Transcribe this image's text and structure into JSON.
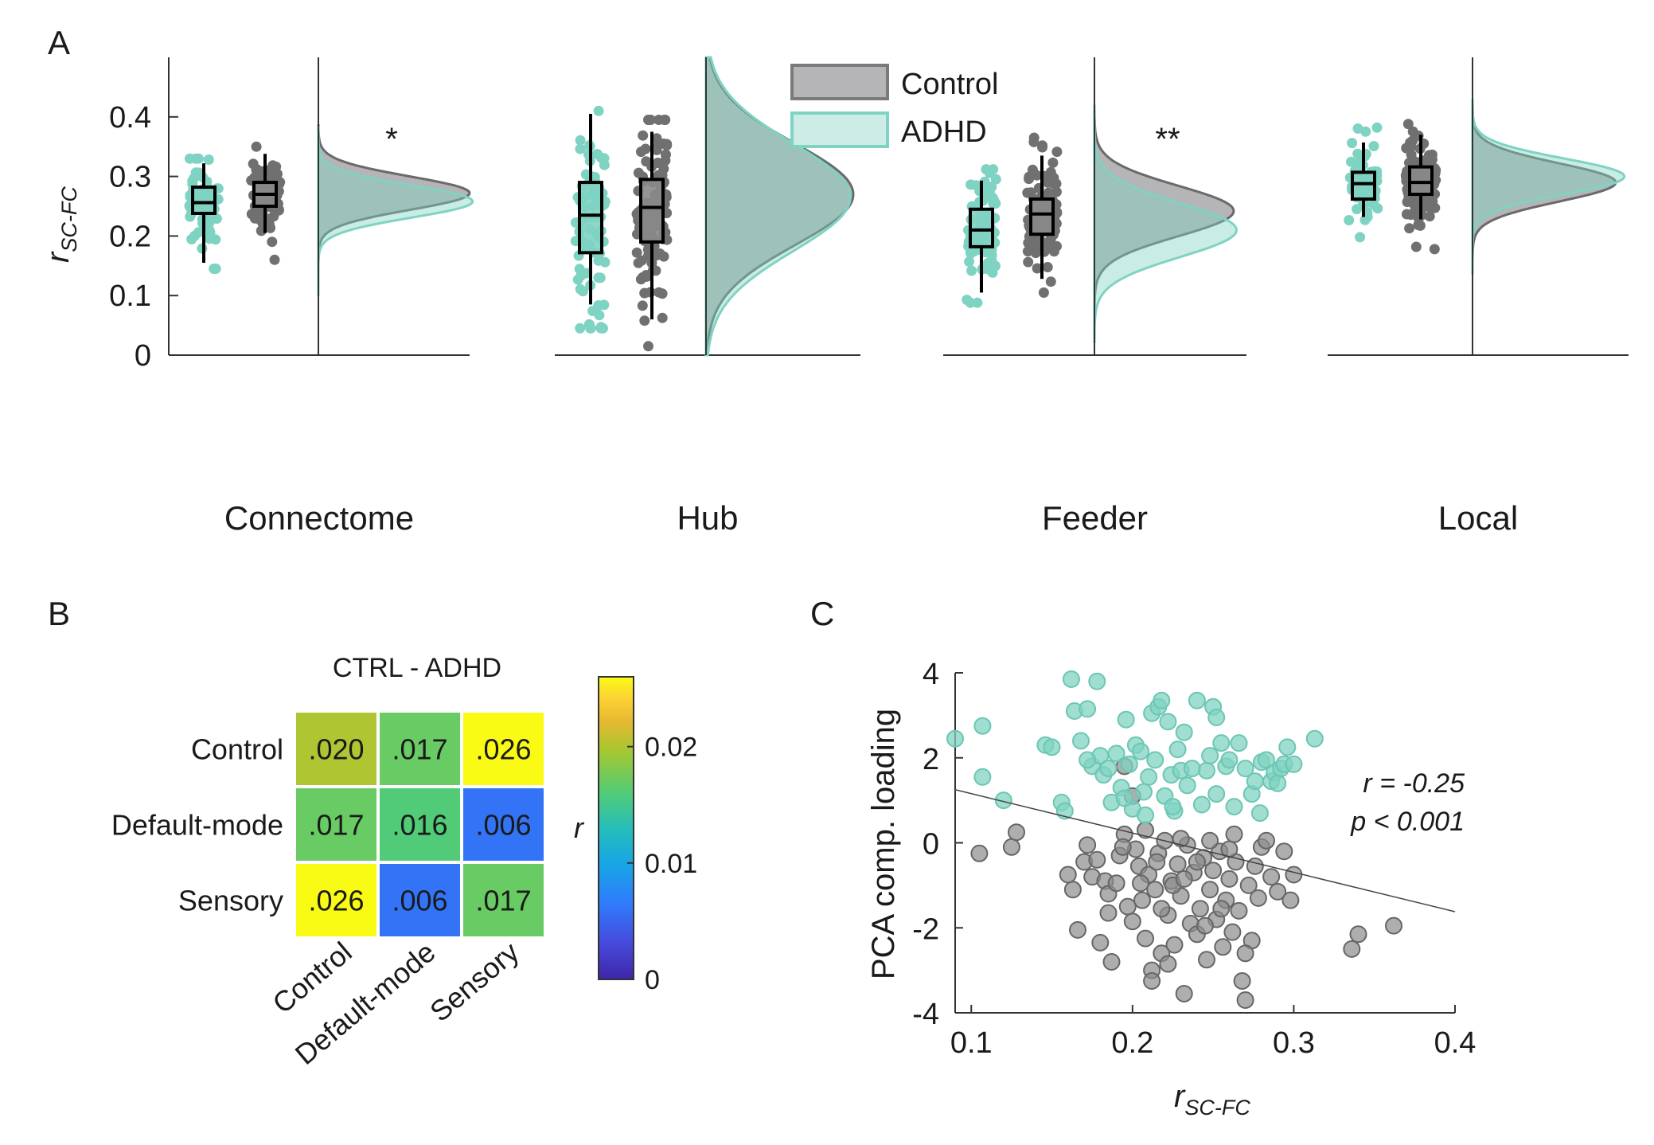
{
  "panel_letters": {
    "a": "A",
    "b": "B",
    "c": "C"
  },
  "colors": {
    "control": "#8c8c8c",
    "control_edge": "#6a6a6a",
    "control_fill": "#b5b4b6",
    "adhd": "#7fd3c2",
    "adhd_fill": "#cdece5",
    "overlap_fill": "#93b5ad"
  },
  "chart_data": [
    {
      "type": "raincloud",
      "ylabel_main": "r",
      "ylabel_sub": "SC-FC",
      "ylim": [
        0,
        0.5
      ],
      "yticks": [
        {
          "v": 0,
          "label": "0"
        },
        {
          "v": 0.1,
          "label": "0.1"
        },
        {
          "v": 0.2,
          "label": "0.2"
        },
        {
          "v": 0.3,
          "label": "0.3"
        },
        {
          "v": 0.4,
          "label": "0.4"
        }
      ],
      "legend": {
        "placement": "top-center",
        "control": "Control",
        "adhd": "ADHD"
      },
      "groups": [
        {
          "name": "Connectome",
          "sig": "*",
          "adhd_box": {
            "min": 0.155,
            "q1": 0.238,
            "median": 0.256,
            "q3": 0.282,
            "max": 0.322
          },
          "control_box": {
            "min": 0.205,
            "q1": 0.25,
            "median": 0.27,
            "q3": 0.29,
            "max": 0.338
          },
          "adhd_points": {
            "n": 70,
            "min": 0.145,
            "max": 0.33
          },
          "control_points": {
            "n": 95,
            "min": 0.16,
            "max": 0.35
          },
          "control_density": {
            "mean": 0.272,
            "sd": 0.028
          },
          "adhd_density": {
            "mean": 0.258,
            "sd": 0.027
          },
          "density_range": [
            0.1,
            0.385
          ]
        },
        {
          "name": "Hub",
          "sig": "",
          "adhd_box": {
            "min": 0.085,
            "q1": 0.172,
            "median": 0.235,
            "q3": 0.29,
            "max": 0.405
          },
          "control_box": {
            "min": 0.06,
            "q1": 0.19,
            "median": 0.248,
            "q3": 0.295,
            "max": 0.375
          },
          "adhd_points": {
            "n": 75,
            "min": 0.045,
            "max": 0.41
          },
          "control_points": {
            "n": 110,
            "min": 0.015,
            "max": 0.395
          },
          "control_density": {
            "mean": 0.27,
            "sd": 0.085
          },
          "adhd_density": {
            "mean": 0.265,
            "sd": 0.09
          },
          "density_range": [
            0,
            0.5
          ]
        },
        {
          "name": "Feeder",
          "sig": "**",
          "adhd_box": {
            "min": 0.105,
            "q1": 0.182,
            "median": 0.21,
            "q3": 0.245,
            "max": 0.293
          },
          "control_box": {
            "min": 0.128,
            "q1": 0.203,
            "median": 0.237,
            "q3": 0.262,
            "max": 0.335
          },
          "adhd_points": {
            "n": 70,
            "min": 0.088,
            "max": 0.312
          },
          "control_points": {
            "n": 120,
            "min": 0.105,
            "max": 0.365
          },
          "control_density": {
            "mean": 0.242,
            "sd": 0.042
          },
          "adhd_density": {
            "mean": 0.21,
            "sd": 0.045
          },
          "density_range": [
            0.02,
            0.42
          ]
        },
        {
          "name": "Local",
          "sig": "",
          "adhd_box": {
            "min": 0.232,
            "q1": 0.262,
            "median": 0.288,
            "q3": 0.307,
            "max": 0.357
          },
          "control_box": {
            "min": 0.228,
            "q1": 0.27,
            "median": 0.29,
            "q3": 0.316,
            "max": 0.37
          },
          "adhd_points": {
            "n": 70,
            "min": 0.198,
            "max": 0.382
          },
          "control_points": {
            "n": 120,
            "min": 0.178,
            "max": 0.388
          },
          "control_density": {
            "mean": 0.29,
            "sd": 0.032
          },
          "adhd_density": {
            "mean": 0.3,
            "sd": 0.03
          },
          "density_range": [
            0.135,
            0.43
          ]
        }
      ]
    },
    {
      "type": "heatmap",
      "title": "CTRL - ADHD",
      "rows": [
        "Control",
        "Default-mode",
        "Sensory"
      ],
      "cols": [
        "Control",
        "Default-mode",
        "Sensory"
      ],
      "values": [
        [
          0.02,
          0.017,
          0.026
        ],
        [
          0.017,
          0.016,
          0.006
        ],
        [
          0.026,
          0.006,
          0.017
        ]
      ],
      "labels": [
        [
          ".020",
          ".017",
          ".026"
        ],
        [
          ".017",
          ".016",
          ".006"
        ],
        [
          ".026",
          ".006",
          ".017"
        ]
      ],
      "colorbar": {
        "label": "r",
        "range": [
          0,
          0.026
        ],
        "ticks": [
          {
            "v": 0,
            "label": "0"
          },
          {
            "v": 0.01,
            "label": "0.01"
          },
          {
            "v": 0.02,
            "label": "0.02"
          }
        ]
      }
    },
    {
      "type": "scatter",
      "xlabel_main": "r",
      "xlabel_sub": "SC-FC",
      "ylabel": "PCA comp. loading",
      "xlim": [
        0.09,
        0.4
      ],
      "ylim": [
        -4,
        4
      ],
      "xticks": [
        {
          "v": 0.1,
          "label": "0.1"
        },
        {
          "v": 0.2,
          "label": "0.2"
        },
        {
          "v": 0.3,
          "label": "0.3"
        },
        {
          "v": 0.4,
          "label": "0.4"
        }
      ],
      "yticks": [
        {
          "v": -4,
          "label": "-4"
        },
        {
          "v": -2,
          "label": "-2"
        },
        {
          "v": 0,
          "label": "0"
        },
        {
          "v": 2,
          "label": "2"
        },
        {
          "v": 4,
          "label": "4"
        }
      ],
      "annotation_r": "r = -0.25",
      "annotation_p": "p < 0.001",
      "fit_line": {
        "x": [
          0.09,
          0.4
        ],
        "y": [
          1.25,
          -1.62
        ]
      },
      "adhd_points": [
        [
          0.09,
          2.45
        ],
        [
          0.107,
          2.75
        ],
        [
          0.107,
          1.55
        ],
        [
          0.12,
          1.0
        ],
        [
          0.146,
          2.3
        ],
        [
          0.15,
          2.25
        ],
        [
          0.156,
          0.95
        ],
        [
          0.158,
          0.75
        ],
        [
          0.162,
          3.85
        ],
        [
          0.164,
          3.1
        ],
        [
          0.168,
          2.4
        ],
        [
          0.172,
          3.15
        ],
        [
          0.175,
          1.8
        ],
        [
          0.178,
          3.8
        ],
        [
          0.18,
          2.05
        ],
        [
          0.182,
          1.6
        ],
        [
          0.185,
          1.75
        ],
        [
          0.187,
          0.95
        ],
        [
          0.19,
          2.1
        ],
        [
          0.193,
          1.3
        ],
        [
          0.196,
          2.9
        ],
        [
          0.198,
          1.85
        ],
        [
          0.2,
          0.8
        ],
        [
          0.202,
          2.3
        ],
        [
          0.205,
          2.15
        ],
        [
          0.207,
          1.2
        ],
        [
          0.21,
          1.55
        ],
        [
          0.212,
          3.05
        ],
        [
          0.214,
          1.95
        ],
        [
          0.216,
          3.2
        ],
        [
          0.218,
          3.35
        ],
        [
          0.22,
          1.1
        ],
        [
          0.222,
          2.85
        ],
        [
          0.224,
          1.6
        ],
        [
          0.226,
          0.75
        ],
        [
          0.228,
          2.2
        ],
        [
          0.23,
          1.7
        ],
        [
          0.232,
          2.6
        ],
        [
          0.234,
          1.35
        ],
        [
          0.237,
          1.75
        ],
        [
          0.24,
          3.35
        ],
        [
          0.243,
          0.9
        ],
        [
          0.246,
          1.7
        ],
        [
          0.248,
          2.05
        ],
        [
          0.25,
          3.2
        ],
        [
          0.252,
          1.15
        ],
        [
          0.255,
          2.35
        ],
        [
          0.258,
          1.8
        ],
        [
          0.26,
          1.95
        ],
        [
          0.263,
          0.85
        ],
        [
          0.266,
          2.35
        ],
        [
          0.27,
          1.75
        ],
        [
          0.274,
          1.15
        ],
        [
          0.276,
          1.45
        ],
        [
          0.279,
          0.7
        ],
        [
          0.28,
          1.9
        ],
        [
          0.283,
          1.95
        ],
        [
          0.286,
          1.45
        ],
        [
          0.288,
          1.65
        ],
        [
          0.29,
          1.4
        ],
        [
          0.292,
          1.75
        ],
        [
          0.294,
          1.85
        ],
        [
          0.296,
          2.25
        ],
        [
          0.3,
          1.85
        ],
        [
          0.313,
          2.45
        ],
        [
          0.225,
          0.85
        ],
        [
          0.195,
          1.05
        ],
        [
          0.208,
          0.65
        ],
        [
          0.172,
          1.95
        ],
        [
          0.252,
          2.95
        ]
      ],
      "control_points": [
        [
          0.105,
          -0.25
        ],
        [
          0.125,
          -0.1
        ],
        [
          0.128,
          0.25
        ],
        [
          0.16,
          -0.75
        ],
        [
          0.163,
          -1.1
        ],
        [
          0.166,
          -2.05
        ],
        [
          0.17,
          -0.45
        ],
        [
          0.172,
          -0.05
        ],
        [
          0.175,
          -0.8
        ],
        [
          0.18,
          -2.35
        ],
        [
          0.183,
          -0.9
        ],
        [
          0.185,
          -1.2
        ],
        [
          0.187,
          -2.8
        ],
        [
          0.19,
          -0.95
        ],
        [
          0.192,
          -0.3
        ],
        [
          0.195,
          0.2
        ],
        [
          0.197,
          -1.5
        ],
        [
          0.2,
          -1.85
        ],
        [
          0.202,
          -0.15
        ],
        [
          0.204,
          -0.55
        ],
        [
          0.206,
          -1.35
        ],
        [
          0.208,
          -2.25
        ],
        [
          0.21,
          -0.75
        ],
        [
          0.212,
          -3.0
        ],
        [
          0.214,
          -1.1
        ],
        [
          0.216,
          -0.25
        ],
        [
          0.218,
          -2.6
        ],
        [
          0.22,
          0.05
        ],
        [
          0.222,
          -1.7
        ],
        [
          0.224,
          -0.9
        ],
        [
          0.226,
          -2.4
        ],
        [
          0.228,
          -0.5
        ],
        [
          0.23,
          -1.25
        ],
        [
          0.232,
          -3.55
        ],
        [
          0.234,
          -0.05
        ],
        [
          0.236,
          -1.9
        ],
        [
          0.238,
          -0.7
        ],
        [
          0.24,
          -2.15
        ],
        [
          0.242,
          -1.55
        ],
        [
          0.244,
          -0.35
        ],
        [
          0.246,
          -2.75
        ],
        [
          0.248,
          -1.1
        ],
        [
          0.25,
          -0.65
        ],
        [
          0.252,
          -1.8
        ],
        [
          0.254,
          -0.2
        ],
        [
          0.256,
          -2.45
        ],
        [
          0.258,
          -1.35
        ],
        [
          0.26,
          -0.85
        ],
        [
          0.262,
          -2.1
        ],
        [
          0.264,
          -0.45
        ],
        [
          0.266,
          -1.6
        ],
        [
          0.268,
          -3.25
        ],
        [
          0.27,
          -3.7
        ],
        [
          0.272,
          -1.0
        ],
        [
          0.274,
          -2.3
        ],
        [
          0.276,
          -0.55
        ],
        [
          0.278,
          -1.3
        ],
        [
          0.28,
          -0.1
        ],
        [
          0.283,
          0.05
        ],
        [
          0.286,
          -0.8
        ],
        [
          0.29,
          -1.15
        ],
        [
          0.294,
          -0.2
        ],
        [
          0.298,
          -1.35
        ],
        [
          0.3,
          -0.75
        ],
        [
          0.336,
          -2.5
        ],
        [
          0.34,
          -2.15
        ],
        [
          0.362,
          -1.95
        ],
        [
          0.2,
          1.1
        ],
        [
          0.195,
          1.8
        ],
        [
          0.215,
          -0.45
        ],
        [
          0.225,
          -1.0
        ],
        [
          0.205,
          -0.95
        ],
        [
          0.212,
          -3.25
        ],
        [
          0.23,
          0.1
        ],
        [
          0.245,
          -1.95
        ],
        [
          0.263,
          0.2
        ],
        [
          0.27,
          -2.6
        ],
        [
          0.185,
          -1.65
        ],
        [
          0.178,
          -0.4
        ],
        [
          0.24,
          -0.45
        ],
        [
          0.255,
          -1.55
        ],
        [
          0.248,
          0.05
        ],
        [
          0.26,
          -0.15
        ],
        [
          0.222,
          -2.85
        ],
        [
          0.218,
          -1.55
        ],
        [
          0.232,
          -0.85
        ],
        [
          0.194,
          -0.1
        ],
        [
          0.208,
          0.3
        ]
      ]
    }
  ]
}
